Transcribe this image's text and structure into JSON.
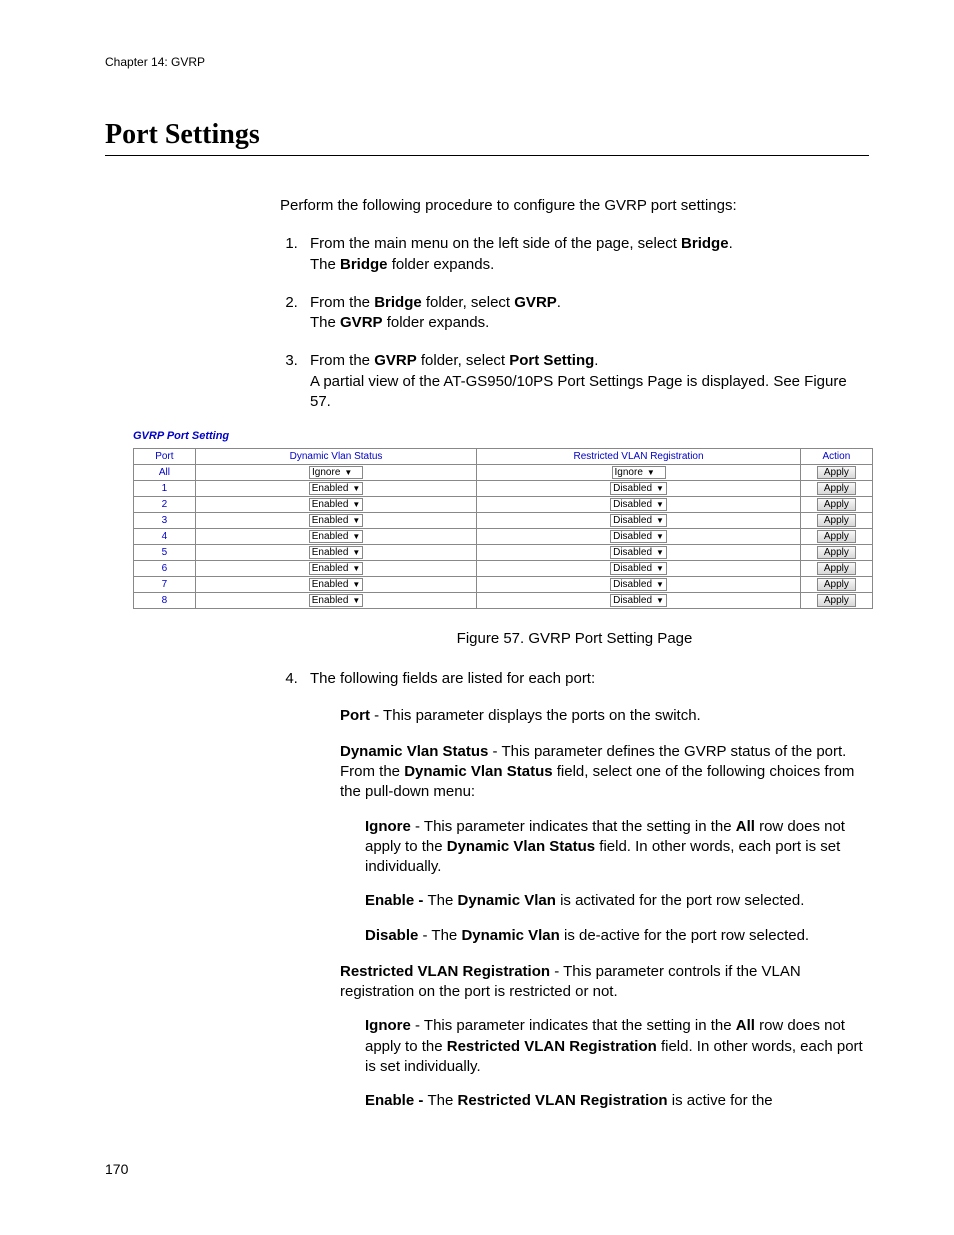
{
  "chapter_header": "Chapter 14: GVRP",
  "section_title": "Port Settings",
  "intro_text": "Perform the following procedure to configure the GVRP port settings:",
  "steps": {
    "s1_a": "From the main menu on the left side of the page, select ",
    "s1_b": "Bridge",
    "s1_c": ".",
    "s1_d": "The ",
    "s1_e": "Bridge",
    "s1_f": " folder expands.",
    "s2_a": "From the ",
    "s2_b": "Bridge",
    "s2_c": " folder, select ",
    "s2_d": "GVRP",
    "s2_e": ".",
    "s2_f_a": "The ",
    "s2_f_b": "GVRP",
    "s2_f_c": " folder expands.",
    "s3_a": "From the ",
    "s3_b": "GVRP",
    "s3_c": " folder, select ",
    "s3_d": "Port Setting",
    "s3_e": ".",
    "s3_f": "A partial view of the AT-GS950/10PS Port Settings Page is displayed. See Figure 57.",
    "s4": "The following fields are listed for each port:"
  },
  "screenshot": {
    "title": "GVRP Port Setting",
    "headers": {
      "port": "Port",
      "dvs": "Dynamic Vlan Status",
      "rvr": "Restricted VLAN Registration",
      "action": "Action"
    },
    "apply_label": "Apply",
    "rows": [
      {
        "port": "All",
        "dvs": "Ignore",
        "rvr": "Ignore"
      },
      {
        "port": "1",
        "dvs": "Enabled",
        "rvr": "Disabled"
      },
      {
        "port": "2",
        "dvs": "Enabled",
        "rvr": "Disabled"
      },
      {
        "port": "3",
        "dvs": "Enabled",
        "rvr": "Disabled"
      },
      {
        "port": "4",
        "dvs": "Enabled",
        "rvr": "Disabled"
      },
      {
        "port": "5",
        "dvs": "Enabled",
        "rvr": "Disabled"
      },
      {
        "port": "6",
        "dvs": "Enabled",
        "rvr": "Disabled"
      },
      {
        "port": "7",
        "dvs": "Enabled",
        "rvr": "Disabled"
      },
      {
        "port": "8",
        "dvs": "Enabled",
        "rvr": "Disabled"
      }
    ]
  },
  "figure_caption": "Figure 57. GVRP Port Setting Page",
  "defs": {
    "port_lbl": "Port",
    "port_txt": " - This parameter displays the ports on the switch.",
    "dvs_lbl": "Dynamic Vlan Status",
    "dvs_txt_a": " - This parameter defines the GVRP status of the port. From the ",
    "dvs_txt_b": "Dynamic Vlan Status",
    "dvs_txt_c": " field, select one of the following choices from the pull-down menu:",
    "ign_lbl": "Ignore",
    "ign_txt_a": " - This parameter indicates that the setting in the ",
    "ign_txt_all": "All",
    "ign_txt_b": " row does not apply to the ",
    "ign_txt_c": "Dynamic Vlan Status",
    "ign_txt_d": " field. In other words, each port is set individually.",
    "en_lbl": "Enable - ",
    "en_txt_a": "The ",
    "en_txt_b": "Dynamic Vlan",
    "en_txt_c": " is activated for the port row selected.",
    "dis_lbl": "Disable",
    "dis_txt_a": " - The ",
    "dis_txt_b": "Dynamic Vlan",
    "dis_txt_c": " is de-active for the port row selected.",
    "rvr_lbl": "Restricted VLAN Registration",
    "rvr_txt": " - This parameter controls if the VLAN registration on the port is restricted or not.",
    "ign2_txt_c": "Restricted VLAN Registration",
    "en2_txt_b": "Restricted VLAN Registration",
    "en2_txt_c": " is active for the"
  },
  "page_number": "170"
}
